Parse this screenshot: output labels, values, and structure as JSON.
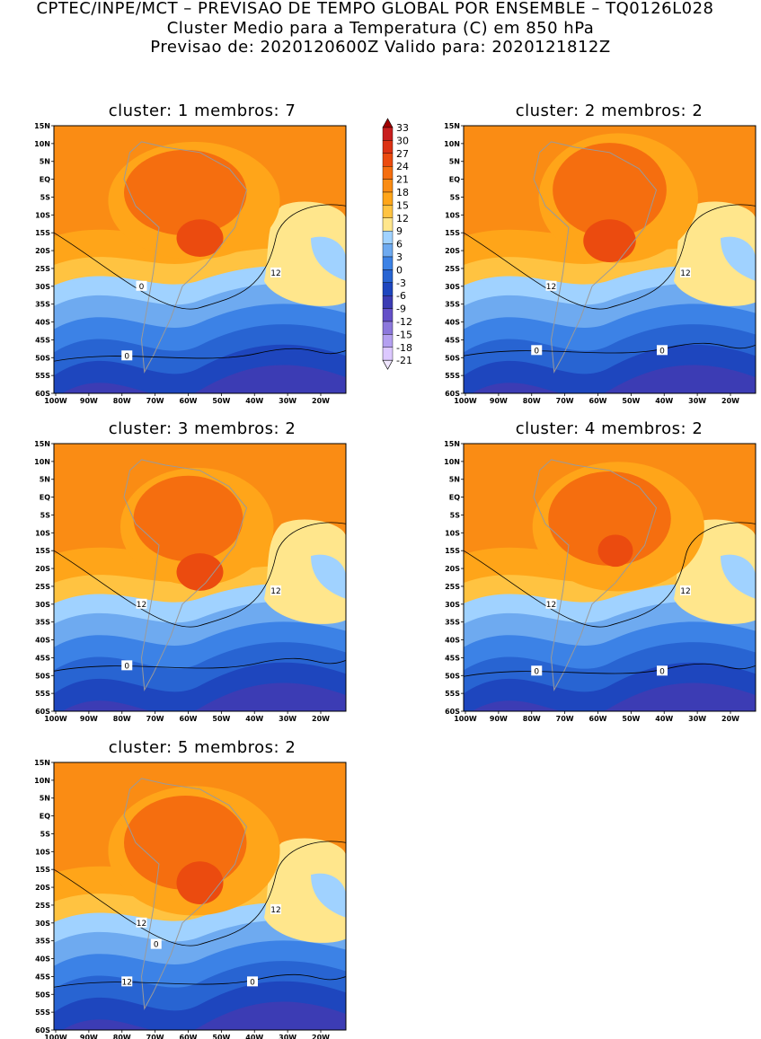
{
  "header": {
    "line1": "CPTEC/INPE/MCT – PREVISAO DE TEMPO GLOBAL POR ENSEMBLE – TQ0126L028",
    "line2": "Cluster Medio para a Temperatura (C) em 850 hPa",
    "line3": "Previsao de: 2020120600Z    Valido para: 2020121812Z"
  },
  "axes": {
    "lat_ticks": [
      "15N",
      "10N",
      "5N",
      "EQ",
      "5S",
      "10S",
      "15S",
      "20S",
      "25S",
      "30S",
      "35S",
      "40S",
      "45S",
      "50S",
      "55S",
      "60S"
    ],
    "lon_ticks": [
      "100W",
      "90W",
      "80W",
      "70W",
      "60W",
      "50W",
      "40W",
      "30W",
      "20W"
    ]
  },
  "colorbar": {
    "labels": [
      "33",
      "30",
      "27",
      "24",
      "21",
      "18",
      "15",
      "12",
      "9",
      "6",
      "3",
      "0",
      "-3",
      "-6",
      "-9",
      "-12",
      "-15",
      "-18",
      "-21"
    ],
    "colors": [
      "#a00000",
      "#c81e1e",
      "#dc3214",
      "#eb4b0f",
      "#f56e0f",
      "#fa8c14",
      "#ffa519",
      "#ffc341",
      "#ffe68c",
      "#a0d2ff",
      "#6eaaf0",
      "#3c82e6",
      "#2864d2",
      "#1e46be",
      "#3c3cb4",
      "#6450c8",
      "#8c78dc",
      "#b4a0f0",
      "#dcc8ff",
      "#f0e6ff"
    ]
  },
  "panels": [
    {
      "title": "cluster: 1   membros: 7",
      "contour_labels": [
        "12",
        "0",
        "0"
      ]
    },
    {
      "title": "cluster: 2   membros: 2",
      "contour_labels": [
        "12",
        "12",
        "0",
        "0"
      ]
    },
    {
      "title": "cluster: 3   membros: 2",
      "contour_labels": [
        "12",
        "12",
        "0"
      ]
    },
    {
      "title": "cluster: 4   membros: 2",
      "contour_labels": [
        "12",
        "12",
        "0",
        "0"
      ]
    },
    {
      "title": "cluster: 5   membros: 2",
      "contour_labels": [
        "12",
        "12",
        "12",
        "0",
        "0"
      ]
    }
  ]
}
